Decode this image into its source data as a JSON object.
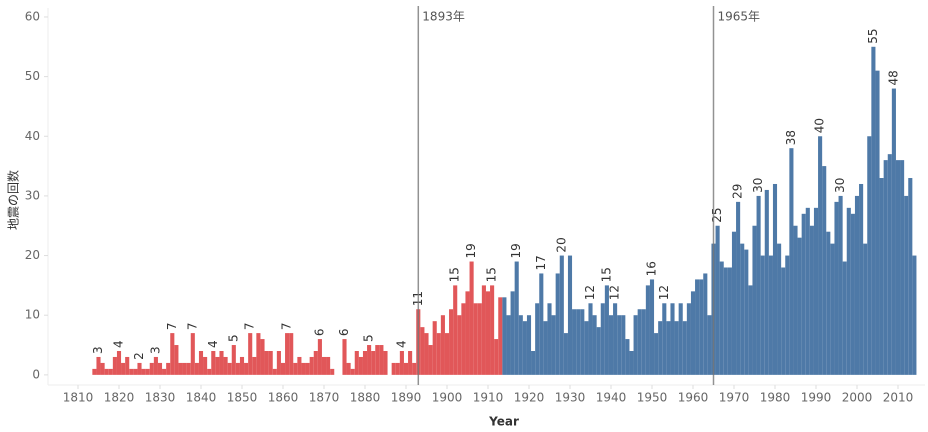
{
  "chart_data": {
    "type": "bar",
    "xlabel": "Year",
    "ylabel": "地震の回数",
    "xlim": [
      1806,
      2016
    ],
    "ylim": [
      -1.7,
      61
    ],
    "xticks": [
      1810,
      1820,
      1830,
      1840,
      1850,
      1860,
      1870,
      1880,
      1890,
      1900,
      1910,
      1920,
      1930,
      1940,
      1950,
      1960,
      1970,
      1980,
      1990,
      2000,
      2010
    ],
    "yticks": [
      0,
      10,
      20,
      30,
      40,
      50,
      60
    ],
    "grid": false,
    "annotations": [
      {
        "x": 1893,
        "label": "1893年"
      },
      {
        "x": 1965,
        "label": "1965年"
      }
    ],
    "series": [
      {
        "color": "#e15759",
        "x": [
          1814,
          1815,
          1816,
          1817,
          1818,
          1819,
          1820,
          1821,
          1822,
          1823,
          1824,
          1825,
          1826,
          1827,
          1828,
          1829,
          1830,
          1831,
          1832,
          1833,
          1834,
          1835,
          1836,
          1837,
          1838,
          1839,
          1840,
          1841,
          1842,
          1843,
          1844,
          1845,
          1846,
          1847,
          1848,
          1849,
          1850,
          1851,
          1852,
          1853,
          1854,
          1855,
          1856,
          1857,
          1858,
          1859,
          1860,
          1861,
          1862,
          1863,
          1864,
          1865,
          1866,
          1867,
          1868,
          1869,
          1870,
          1871,
          1872,
          1873,
          1874,
          1875,
          1876,
          1877,
          1878,
          1879,
          1880,
          1881,
          1882,
          1883,
          1884,
          1885,
          1886,
          1887,
          1888,
          1889,
          1890,
          1891,
          1892,
          1893,
          1894,
          1895,
          1896,
          1897,
          1898,
          1899,
          1900,
          1901,
          1902,
          1903,
          1904,
          1905,
          1906,
          1907,
          1908,
          1909,
          1910,
          1911,
          1912,
          1913
        ],
        "values": [
          1,
          3,
          2,
          1,
          1,
          3,
          4,
          2,
          3,
          1,
          1,
          2,
          1,
          1,
          2,
          3,
          2,
          1,
          2,
          7,
          5,
          2,
          2,
          2,
          7,
          2,
          4,
          3,
          1,
          4,
          3,
          4,
          3,
          2,
          5,
          2,
          3,
          2,
          7,
          3,
          7,
          6,
          4,
          4,
          1,
          4,
          2,
          7,
          7,
          2,
          3,
          2,
          2,
          3,
          4,
          6,
          3,
          3,
          1,
          null,
          null,
          6,
          2,
          1,
          4,
          3,
          4,
          5,
          4,
          5,
          5,
          4,
          null,
          2,
          2,
          4,
          2,
          4,
          2,
          11,
          8,
          7,
          5,
          9,
          7,
          10,
          7,
          11,
          15,
          10,
          12,
          14,
          19,
          12,
          12,
          15,
          14,
          15,
          6,
          13
        ],
        "value_labels": [
          null,
          "3",
          null,
          null,
          null,
          null,
          "4",
          null,
          null,
          null,
          null,
          "2",
          null,
          null,
          null,
          "3",
          null,
          null,
          null,
          "7",
          null,
          null,
          null,
          null,
          "7",
          null,
          null,
          null,
          null,
          "4",
          null,
          null,
          null,
          null,
          "5",
          null,
          null,
          null,
          "7",
          null,
          null,
          null,
          null,
          null,
          null,
          null,
          null,
          "7",
          null,
          null,
          null,
          null,
          null,
          null,
          null,
          "6",
          null,
          null,
          null,
          null,
          null,
          "6",
          null,
          null,
          null,
          null,
          null,
          "5",
          null,
          null,
          null,
          null,
          null,
          null,
          null,
          "4",
          null,
          null,
          null,
          "11",
          null,
          null,
          null,
          null,
          null,
          null,
          null,
          null,
          "15",
          null,
          null,
          null,
          "19",
          null,
          null,
          null,
          null,
          "15",
          null,
          null
        ]
      },
      {
        "color": "#4e79a7",
        "x": [
          1914,
          1915,
          1916,
          1917,
          1918,
          1919,
          1920,
          1921,
          1922,
          1923,
          1924,
          1925,
          1926,
          1927,
          1928,
          1929,
          1930,
          1931,
          1932,
          1933,
          1934,
          1935,
          1936,
          1937,
          1938,
          1939,
          1940,
          1941,
          1942,
          1943,
          1944,
          1945,
          1946,
          1947,
          1948,
          1949,
          1950,
          1951,
          1952,
          1953,
          1954,
          1955,
          1956,
          1957,
          1958,
          1959,
          1960,
          1961,
          1962,
          1963,
          1964,
          1965,
          1966,
          1967,
          1968,
          1969,
          1970,
          1971,
          1972,
          1973,
          1974,
          1975,
          1976,
          1977,
          1978,
          1979,
          1980,
          1981,
          1982,
          1983,
          1984,
          1985,
          1986,
          1987,
          1988,
          1989,
          1990,
          1991,
          1992,
          1993,
          1994,
          1995,
          1996,
          1997,
          1998,
          1999,
          2000,
          2001,
          2002,
          2003,
          2004,
          2005,
          2006,
          2007,
          2008,
          2009,
          2010,
          2011,
          2012,
          2013,
          2014
        ],
        "values": [
          13,
          10,
          14,
          19,
          10,
          9,
          10,
          4,
          12,
          17,
          9,
          12,
          10,
          17,
          20,
          7,
          20,
          11,
          11,
          11,
          9,
          12,
          10,
          8,
          12,
          15,
          10,
          12,
          10,
          10,
          6,
          4,
          10,
          11,
          11,
          15,
          16,
          7,
          9,
          12,
          9,
          12,
          9,
          12,
          9,
          12,
          14,
          16,
          16,
          17,
          10,
          22,
          25,
          19,
          18,
          18,
          24,
          29,
          22,
          21,
          15,
          25,
          30,
          20,
          31,
          20,
          32,
          22,
          18,
          20,
          38,
          25,
          23,
          27,
          28,
          25,
          28,
          40,
          35,
          24,
          22,
          29,
          30,
          19,
          28,
          27,
          30,
          32,
          22,
          40,
          55,
          51,
          33,
          36,
          37,
          48,
          36,
          36,
          30,
          33,
          20
        ],
        "value_labels": [
          null,
          null,
          null,
          "19",
          null,
          null,
          null,
          null,
          null,
          "17",
          null,
          null,
          null,
          null,
          "20",
          null,
          null,
          null,
          null,
          null,
          null,
          "12",
          null,
          null,
          null,
          "15",
          null,
          "12",
          null,
          null,
          null,
          null,
          null,
          null,
          null,
          null,
          "16",
          null,
          null,
          "12",
          null,
          null,
          null,
          null,
          null,
          null,
          null,
          null,
          null,
          null,
          null,
          null,
          "25",
          null,
          null,
          null,
          null,
          "29",
          null,
          null,
          null,
          null,
          "30",
          null,
          null,
          null,
          null,
          null,
          null,
          null,
          "38",
          null,
          null,
          null,
          null,
          null,
          null,
          "40",
          null,
          null,
          null,
          null,
          "30",
          null,
          null,
          null,
          null,
          null,
          null,
          null,
          "55",
          null,
          null,
          null,
          null,
          "48",
          null,
          null,
          null,
          null,
          null
        ]
      }
    ]
  }
}
